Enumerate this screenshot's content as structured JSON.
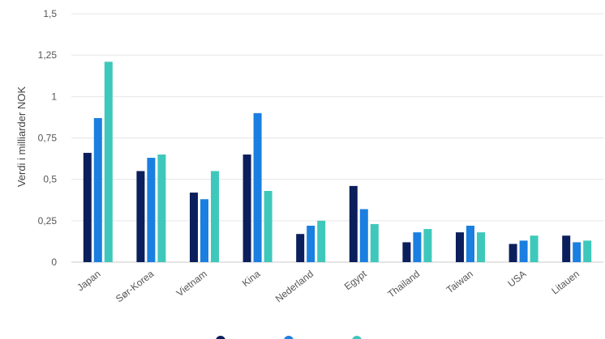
{
  "chart_data": {
    "type": "bar",
    "ylabel": "Verdi i milliarder NOK",
    "ylim": [
      0,
      1.5
    ],
    "yticks": [
      "0",
      "0,25",
      "0,5",
      "0,75",
      "1",
      "1,25",
      "1,5"
    ],
    "grid": true,
    "legend_position": "bottom",
    "categories": [
      "Japan",
      "Sør-Korea",
      "Vietnam",
      "Kina",
      "Nederland",
      "Egypt",
      "Thailand",
      "Taiwan",
      "USA",
      "Litauen"
    ],
    "series": [
      {
        "name": "",
        "color": "#0b1f5c",
        "values": [
          0.66,
          0.55,
          0.42,
          0.65,
          0.17,
          0.46,
          0.12,
          0.18,
          0.11,
          0.16
        ]
      },
      {
        "name": "",
        "color": "#1a7fe0",
        "values": [
          0.87,
          0.63,
          0.38,
          0.9,
          0.22,
          0.32,
          0.18,
          0.22,
          0.13,
          0.12
        ]
      },
      {
        "name": "",
        "color": "#3ec8bb",
        "values": [
          1.21,
          0.65,
          0.55,
          0.43,
          0.25,
          0.23,
          0.2,
          0.18,
          0.16,
          0.13
        ]
      }
    ]
  }
}
